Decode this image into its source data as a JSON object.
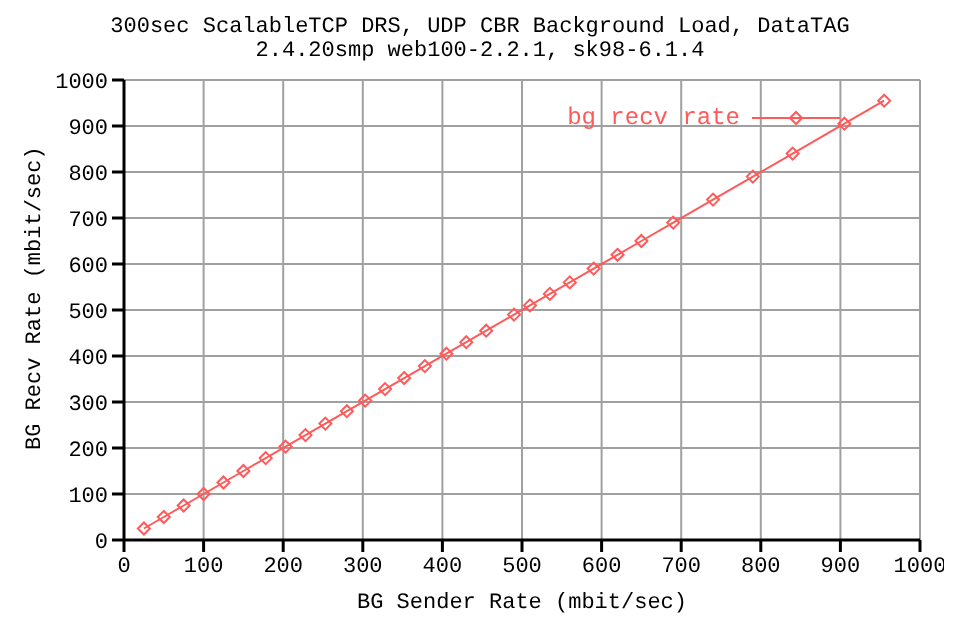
{
  "chart_data": {
    "type": "line",
    "title": "300sec ScalableTCP DRS, UDP CBR Background Load, DataTAG",
    "subtitle": "2.4.20smp web100-2.2.1, sk98-6.1.4",
    "xlabel": "BG Sender Rate (mbit/sec)",
    "ylabel": "BG Recv Rate (mbit/sec)",
    "x": [
      25,
      50,
      75,
      100,
      125,
      150,
      178,
      203,
      228,
      253,
      280,
      303,
      328,
      352,
      378,
      405,
      430,
      455,
      490,
      510,
      535,
      560,
      590,
      620,
      650,
      690,
      740,
      790,
      840,
      905,
      955
    ],
    "series": [
      {
        "name": "bg recv rate",
        "color": "#ff5a5a",
        "values": [
          25,
          50,
          75,
          100,
          125,
          150,
          178,
          203,
          228,
          253,
          280,
          303,
          328,
          352,
          378,
          405,
          430,
          455,
          490,
          510,
          535,
          560,
          590,
          620,
          650,
          690,
          740,
          790,
          840,
          905,
          955
        ]
      }
    ],
    "xlim": [
      0,
      1000
    ],
    "ylim": [
      0,
      1000
    ],
    "xticks": [
      0,
      100,
      200,
      300,
      400,
      500,
      600,
      700,
      800,
      900,
      1000
    ],
    "yticks": [
      0,
      100,
      200,
      300,
      400,
      500,
      600,
      700,
      800,
      900,
      1000
    ],
    "grid": true,
    "legend": "top right",
    "marker": "diamond",
    "line_style": "solid"
  }
}
